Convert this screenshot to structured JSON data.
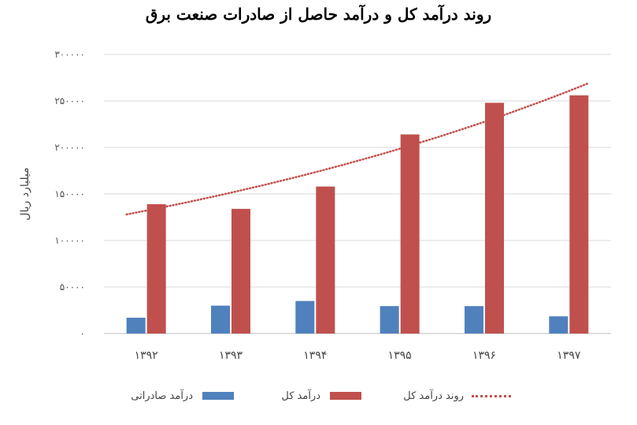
{
  "chart_data": {
    "type": "bar",
    "title": "روند درآمد کل و درآمد حاصل از صادرات صنعت برق",
    "ylabel": "میلیارد ریال",
    "xlabel": "",
    "categories": [
      "۱۳۹۲",
      "۱۳۹۳",
      "۱۳۹۴",
      "۱۳۹۵",
      "۱۳۹۶",
      "۱۳۹۷"
    ],
    "ylim": [
      0,
      300000
    ],
    "yticks": [
      0,
      50000,
      100000,
      150000,
      200000,
      250000,
      300000
    ],
    "ytick_labels": [
      "۰",
      "۵۰۰۰۰",
      "۱۰۰۰۰۰",
      "۱۵۰۰۰۰",
      "۲۰۰۰۰۰",
      "۲۵۰۰۰۰",
      "۳۰۰۰۰۰"
    ],
    "grid": true,
    "legend_position": "bottom",
    "series": [
      {
        "name": "درآمد صادراتی",
        "values": [
          17000,
          30000,
          35000,
          29500,
          29500,
          18500
        ],
        "color": "#4f81bd"
      },
      {
        "name": "درآمد کل",
        "values": [
          139000,
          134000,
          158000,
          214000,
          248000,
          256000
        ],
        "color": "#c0504d"
      }
    ],
    "trendline": {
      "name": "روند درآمد کل",
      "start": 128000,
      "end": 269000,
      "color": "#c0504d",
      "style": "dotted"
    }
  }
}
